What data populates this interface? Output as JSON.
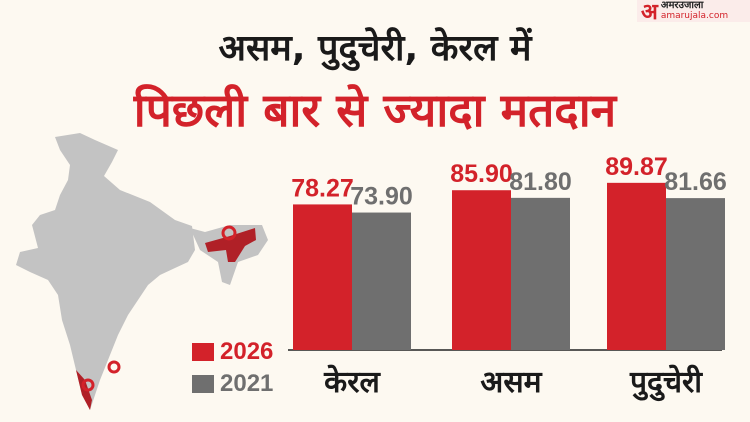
{
  "header": {
    "line1": "असम, पुदुचेरी, केरल में",
    "line2": "पिछली बार से ज्यादा मतदान"
  },
  "logo": {
    "name": "अमर उजाला",
    "domain": "amarujala.com",
    "glyph": "अ"
  },
  "colors": {
    "2026": "#d3222a",
    "2021": "#6f6f6f",
    "map": "#c3c3c3"
  },
  "map": {
    "icon": "india-map-with-location-pins"
  },
  "chart_data": {
    "type": "bar",
    "categories": [
      "केरल",
      "असम",
      "पुदुचेरी"
    ],
    "series": [
      {
        "name": "2026",
        "values": [
          78.27,
          85.9,
          89.87
        ]
      },
      {
        "name": "2021",
        "values": [
          73.9,
          81.8,
          81.66
        ]
      }
    ],
    "labels": [
      [
        "78.27",
        "85.90",
        "89.87"
      ],
      [
        "73.90",
        "81.80",
        "81.66"
      ]
    ],
    "ylim": [
      0,
      100
    ],
    "grid": false,
    "legend_placement": "left"
  }
}
